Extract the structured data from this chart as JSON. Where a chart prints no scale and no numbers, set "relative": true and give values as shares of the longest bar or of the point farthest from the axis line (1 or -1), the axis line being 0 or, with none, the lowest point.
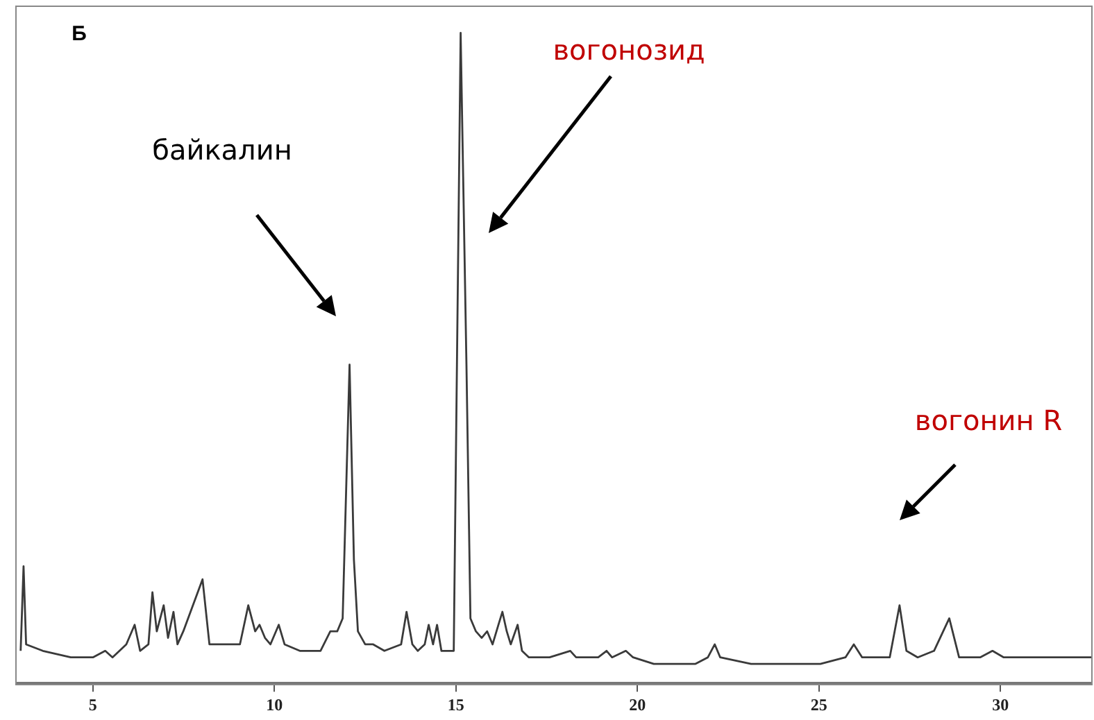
{
  "chart_data": {
    "type": "line",
    "title": "Б",
    "relative": true,
    "color": "#3a3a3a",
    "marker": "none",
    "grid": false,
    "legend": false,
    "xlim": [
      2.9,
      32.5
    ],
    "xticks": [
      5,
      10,
      15,
      20,
      25,
      30
    ],
    "x": [
      3.01,
      3.09,
      3.16,
      3.62,
      4.39,
      5.0,
      5.34,
      5.54,
      5.92,
      6.15,
      6.3,
      6.53,
      6.64,
      6.76,
      6.95,
      7.07,
      7.22,
      7.33,
      7.49,
      8.02,
      8.21,
      8.59,
      9.05,
      9.28,
      9.47,
      9.59,
      9.74,
      9.89,
      10.12,
      10.28,
      10.7,
      11.27,
      11.54,
      11.73,
      11.88,
      12.07,
      12.19,
      12.3,
      12.5,
      12.72,
      13.03,
      13.49,
      13.64,
      13.8,
      13.95,
      14.14,
      14.25,
      14.37,
      14.48,
      14.6,
      14.94,
      15.13,
      15.29,
      15.4,
      15.55,
      15.71,
      15.86,
      16.01,
      16.17,
      16.28,
      16.4,
      16.51,
      16.7,
      16.82,
      17.01,
      17.58,
      18.15,
      18.31,
      18.92,
      19.15,
      19.3,
      19.68,
      19.88,
      20.45,
      21.6,
      21.94,
      22.13,
      22.28,
      23.13,
      25.04,
      25.73,
      25.96,
      26.19,
      26.95,
      27.22,
      27.41,
      27.72,
      28.17,
      28.59,
      28.86,
      29.44,
      29.78,
      30.09,
      30.78,
      32.5
    ],
    "values": [
      0.05,
      0.18,
      0.06,
      0.05,
      0.04,
      0.04,
      0.05,
      0.04,
      0.06,
      0.09,
      0.05,
      0.06,
      0.14,
      0.08,
      0.12,
      0.07,
      0.11,
      0.06,
      0.08,
      0.16,
      0.06,
      0.06,
      0.06,
      0.12,
      0.08,
      0.09,
      0.07,
      0.06,
      0.09,
      0.06,
      0.05,
      0.05,
      0.08,
      0.08,
      0.1,
      0.49,
      0.19,
      0.08,
      0.06,
      0.06,
      0.05,
      0.06,
      0.11,
      0.06,
      0.05,
      0.06,
      0.09,
      0.06,
      0.09,
      0.05,
      0.05,
      1,
      0.49,
      0.1,
      0.08,
      0.07,
      0.08,
      0.06,
      0.09,
      0.11,
      0.08,
      0.06,
      0.09,
      0.05,
      0.04,
      0.04,
      0.05,
      0.04,
      0.04,
      0.05,
      0.04,
      0.05,
      0.04,
      0.03,
      0.03,
      0.04,
      0.06,
      0.04,
      0.03,
      0.03,
      0.04,
      0.06,
      0.04,
      0.04,
      0.12,
      0.05,
      0.04,
      0.05,
      0.1,
      0.04,
      0.04,
      0.05,
      0.04,
      0.04,
      0.04
    ],
    "annotations": [
      "байкалин",
      "вогонозид",
      "вогонин R"
    ]
  }
}
